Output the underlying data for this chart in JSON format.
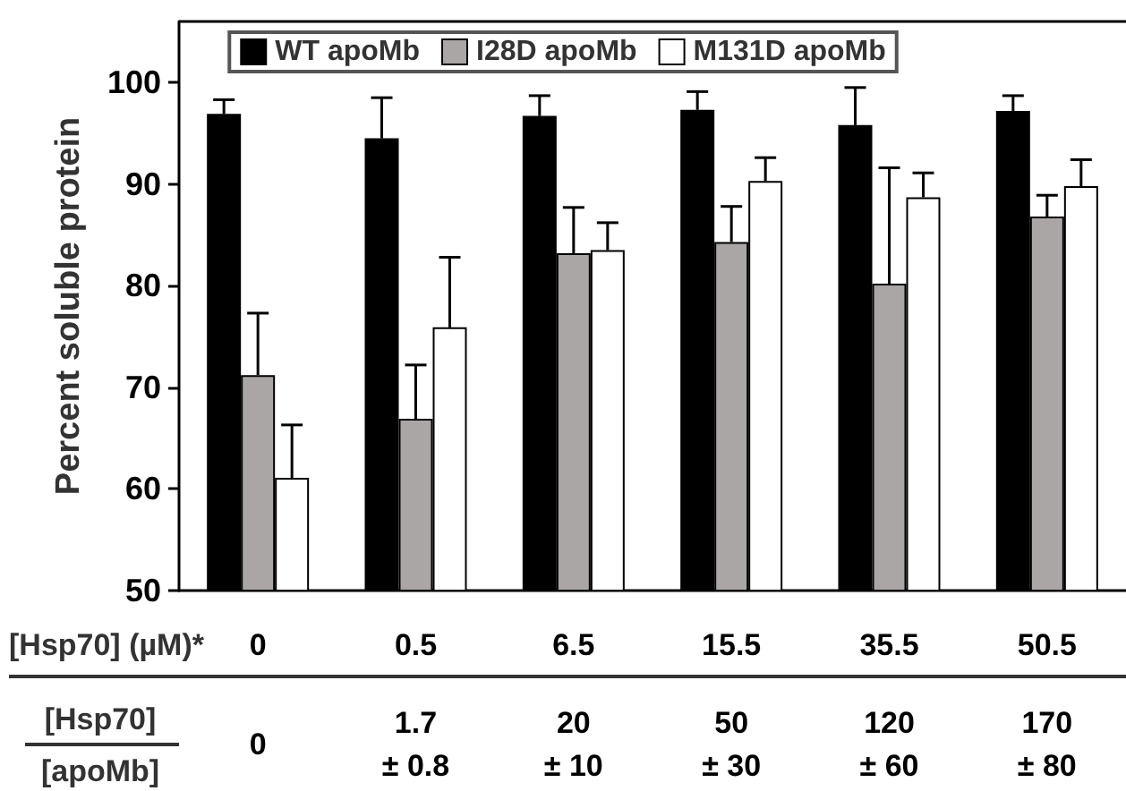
{
  "chart_data": {
    "type": "bar",
    "ylabel": "Percent soluble protein",
    "xlabel": "[Hsp70] (µM)*",
    "categories": [
      "0",
      "0.5",
      "6.5",
      "15.5",
      "35.5",
      "50.5"
    ],
    "series": [
      {
        "name": "WT apoMb",
        "color": "#000000",
        "values": [
          96.9,
          94.5,
          96.7,
          97.3,
          95.8,
          97.2
        ],
        "errors": [
          [
            96.9,
            98.3
          ],
          [
            94.5,
            98.5
          ],
          [
            96.7,
            98.7
          ],
          [
            97.3,
            99.1
          ],
          [
            95.8,
            99.5
          ],
          [
            97.2,
            98.7
          ]
        ]
      },
      {
        "name": "I28D apoMb",
        "color": "#aba6a6",
        "values": [
          71.2,
          66.9,
          83.2,
          84.3,
          80.2,
          86.8
        ],
        "errors": [
          [
            71.2,
            77.3
          ],
          [
            66.9,
            72.2
          ],
          [
            83.2,
            87.7
          ],
          [
            84.3,
            87.8
          ],
          [
            80.2,
            91.6
          ],
          [
            86.8,
            88.9
          ]
        ]
      },
      {
        "name": "M131D apoMb",
        "color": "#ffffff",
        "values": [
          61.1,
          75.9,
          83.5,
          90.3,
          88.7,
          89.8
        ],
        "errors": [
          [
            61.1,
            66.3
          ],
          [
            75.9,
            82.8
          ],
          [
            83.5,
            86.2
          ],
          [
            90.3,
            92.6
          ],
          [
            88.7,
            91.1
          ],
          [
            89.8,
            92.4
          ]
        ]
      }
    ],
    "ylim": [
      50,
      106
    ],
    "yticks": [
      50,
      60,
      70,
      80,
      90,
      100
    ],
    "grid": false,
    "legend": "top",
    "annotations": [
      "[Hsp70]",
      "[apoMb]",
      "0",
      "1.7\n± 0.8",
      "20\n± 10",
      "50\n± 30",
      "120\n± 60",
      "170\n± 80"
    ]
  }
}
